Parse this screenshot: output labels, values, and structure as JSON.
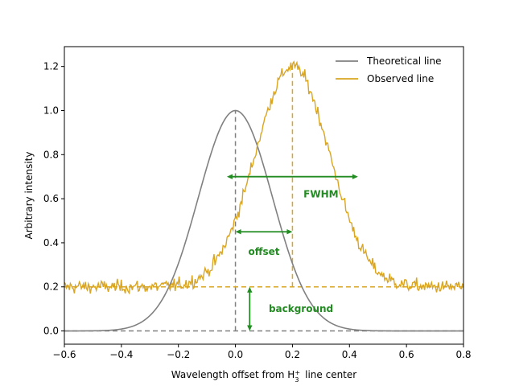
{
  "chart_data": {
    "type": "line",
    "title": "",
    "xlabel": "Wavelength offset from H",
    "xlabel_sub": "3",
    "xlabel_sup": "+",
    "xlabel_suffix": "line center",
    "ylabel": "Arbitrary intensity",
    "xlim": [
      -0.6,
      0.8
    ],
    "ylim": [
      -0.06,
      1.29
    ],
    "xticks": [
      -0.6,
      -0.4,
      -0.2,
      0.0,
      0.2,
      0.4,
      0.6,
      0.8
    ],
    "xtick_labels": [
      "−0.6",
      "−0.4",
      "−0.2",
      "0.0",
      "0.2",
      "0.4",
      "0.6",
      "0.8"
    ],
    "yticks": [
      0.0,
      0.2,
      0.4,
      0.6,
      0.8,
      1.0,
      1.2
    ],
    "ytick_labels": [
      "0.0",
      "0.2",
      "0.4",
      "0.6",
      "0.8",
      "1.0",
      "1.2"
    ],
    "grid": false,
    "legend_position": "top-right",
    "series": [
      {
        "name": "Theoretical line",
        "color": "#808080",
        "model": "gaussian",
        "center": 0.0,
        "amplitude": 1.0,
        "background": 0.0,
        "sigma": 0.13
      },
      {
        "name": "Observed line",
        "color": "#daa520",
        "model": "gaussian_noisy",
        "center": 0.2,
        "amplitude": 1.0,
        "background": 0.2,
        "sigma": 0.13,
        "noise": 0.015
      }
    ],
    "reference_lines": {
      "baseline_y": 0.0,
      "background_y": 0.2,
      "center_x": 0.0,
      "observed_center_x": 0.2
    },
    "annotations": [
      {
        "label": "FWHM",
        "color": "#228b22",
        "arrow_from": [
          -0.03,
          0.7
        ],
        "arrow_to": [
          0.43,
          0.7
        ],
        "text_at": [
          0.3,
          0.62
        ]
      },
      {
        "label": "offset",
        "color": "#228b22",
        "arrow_from": [
          0.0,
          0.45
        ],
        "arrow_to": [
          0.2,
          0.45
        ],
        "text_at": [
          0.1,
          0.36
        ]
      },
      {
        "label": "background",
        "color": "#228b22",
        "arrow_from": [
          0.05,
          0.0
        ],
        "arrow_to": [
          0.05,
          0.2
        ],
        "text_at": [
          0.23,
          0.1
        ]
      }
    ]
  }
}
